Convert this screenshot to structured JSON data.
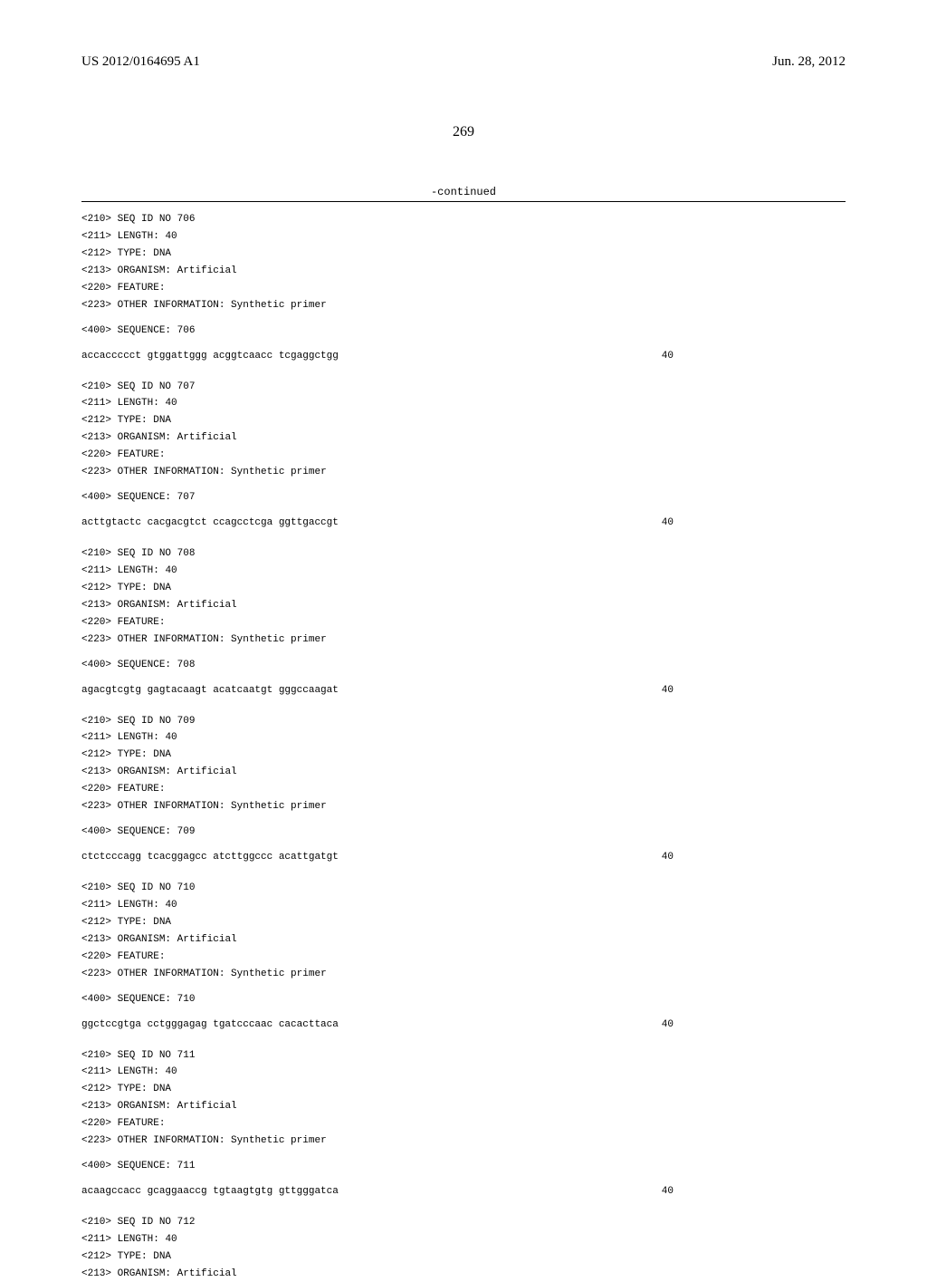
{
  "header": {
    "publication_number": "US 2012/0164695 A1",
    "publication_date": "Jun. 28, 2012"
  },
  "page_number": "269",
  "continued_label": "-continued",
  "sequences": [
    {
      "id": "706",
      "length": "40",
      "type": "DNA",
      "organism": "Artificial",
      "other_info": "Synthetic primer",
      "sequence_label": "706",
      "sequence": "accaccccct gtggattggg acggtcaacc tcgaggctgg",
      "seq_length_display": "40"
    },
    {
      "id": "707",
      "length": "40",
      "type": "DNA",
      "organism": "Artificial",
      "other_info": "Synthetic primer",
      "sequence_label": "707",
      "sequence": "acttgtactc cacgacgtct ccagcctcga ggttgaccgt",
      "seq_length_display": "40"
    },
    {
      "id": "708",
      "length": "40",
      "type": "DNA",
      "organism": "Artificial",
      "other_info": "Synthetic primer",
      "sequence_label": "708",
      "sequence": "agacgtcgtg gagtacaagt acatcaatgt gggccaagat",
      "seq_length_display": "40"
    },
    {
      "id": "709",
      "length": "40",
      "type": "DNA",
      "organism": "Artificial",
      "other_info": "Synthetic primer",
      "sequence_label": "709",
      "sequence": "ctctcccagg tcacggagcc atcttggccc acattgatgt",
      "seq_length_display": "40"
    },
    {
      "id": "710",
      "length": "40",
      "type": "DNA",
      "organism": "Artificial",
      "other_info": "Synthetic primer",
      "sequence_label": "710",
      "sequence": "ggctccgtga cctgggagag tgatcccaac cacacttaca",
      "seq_length_display": "40"
    },
    {
      "id": "711",
      "length": "40",
      "type": "DNA",
      "organism": "Artificial",
      "other_info": "Synthetic primer",
      "sequence_label": "711",
      "sequence": "acaagccacc gcaggaaccg tgtaagtgtg gttgggatca",
      "seq_length_display": "40"
    }
  ],
  "partial_sequence": {
    "id": "712",
    "length": "40",
    "type": "DNA",
    "organism": "Artificial"
  },
  "labels": {
    "seq_id_no": "<210> SEQ ID NO",
    "length": "<211> LENGTH:",
    "type": "<212> TYPE:",
    "organism": "<213> ORGANISM:",
    "feature": "<220> FEATURE:",
    "other_info": "<223> OTHER INFORMATION:",
    "sequence": "<400> SEQUENCE:"
  }
}
